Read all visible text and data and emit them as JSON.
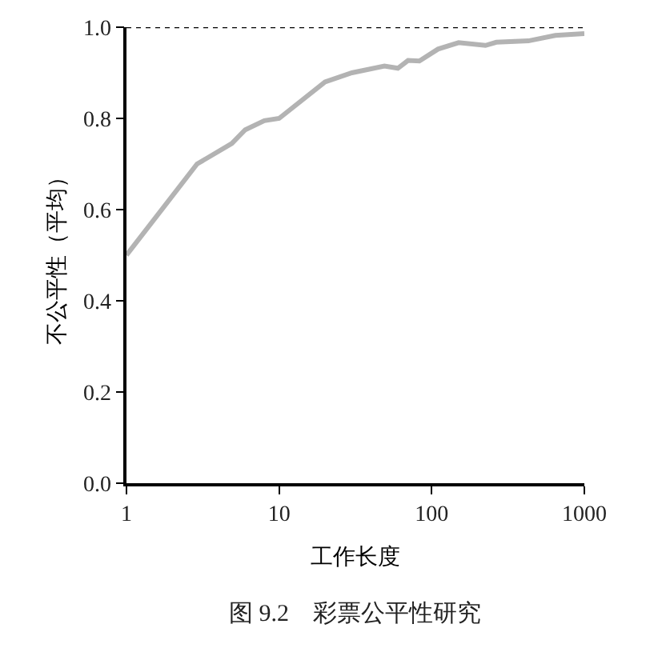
{
  "chart_data": {
    "type": "line",
    "xlabel": "工作长度",
    "ylabel": "不公平性（平均）",
    "annotations": [
      "图 9.2    彩票公平性研究"
    ],
    "log": "x",
    "marker": "none",
    "line_style": "solid",
    "xlim": [
      1,
      1000
    ],
    "xticks": [
      1,
      10,
      100,
      1000
    ],
    "ylim": [
      0,
      1.0
    ],
    "yticks": [
      {
        "value": 0,
        "label": "0.0"
      },
      {
        "value": 0.2,
        "label": "0.2"
      },
      {
        "value": 0.4,
        "label": "0.4"
      },
      {
        "value": 0.6,
        "label": "0.6"
      },
      {
        "value": 0.8,
        "label": "0.8"
      },
      {
        "value": 1.0,
        "label": "1.0"
      }
    ],
    "ref_lines": [
      {
        "axis": "y",
        "value": 1.0,
        "label": null,
        "color": "#000000",
        "line_style": "dotted"
      }
    ],
    "series": [
      {
        "color": "#b3b3b3",
        "x": [
          1,
          2.9,
          4.9,
          6,
          8,
          10,
          20,
          30,
          49,
          60,
          70,
          83,
          110,
          150,
          225,
          265,
          430,
          645,
          1000
        ],
        "values": [
          0.5,
          0.7,
          0.745,
          0.775,
          0.795,
          0.8,
          0.88,
          0.9,
          0.915,
          0.91,
          0.927,
          0.926,
          0.952,
          0.966,
          0.96,
          0.967,
          0.97,
          0.982,
          0.986
        ]
      }
    ]
  }
}
